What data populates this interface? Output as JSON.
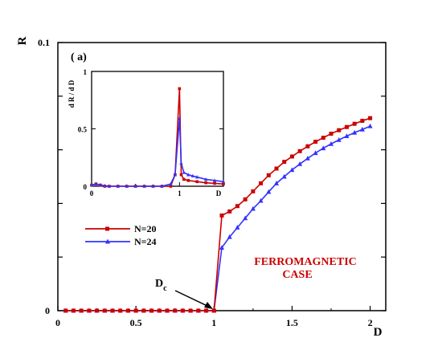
{
  "chart_data": [
    {
      "type": "line",
      "panel_label": "( a)",
      "xlabel": "D",
      "ylabel": "R",
      "xlim": [
        0,
        2.1
      ],
      "ylim": [
        0,
        0.1
      ],
      "x_ticks": [
        "0",
        "0.5",
        "1",
        "1.5",
        "2"
      ],
      "y_ticks": [
        "0",
        "0.1"
      ],
      "legend_position": "left-middle",
      "series": [
        {
          "name": "N=20",
          "color": "#cc0000",
          "marker": "square",
          "x": [
            0.05,
            0.1,
            0.15,
            0.2,
            0.25,
            0.3,
            0.35,
            0.4,
            0.45,
            0.5,
            0.55,
            0.6,
            0.65,
            0.7,
            0.75,
            0.8,
            0.85,
            0.9,
            0.95,
            1.0,
            1.05,
            1.1,
            1.15,
            1.2,
            1.25,
            1.3,
            1.35,
            1.4,
            1.45,
            1.5,
            1.55,
            1.6,
            1.65,
            1.7,
            1.75,
            1.8,
            1.85,
            1.9,
            1.95,
            2.0
          ],
          "y": [
            0,
            0,
            0,
            0,
            0,
            0,
            0,
            0,
            0,
            0,
            0,
            0,
            0,
            0,
            0,
            0,
            0,
            0,
            0,
            0,
            0.0355,
            0.037,
            0.039,
            0.0415,
            0.0445,
            0.0475,
            0.0505,
            0.053,
            0.0555,
            0.0575,
            0.0595,
            0.0613,
            0.063,
            0.0645,
            0.066,
            0.0673,
            0.0685,
            0.0697,
            0.0708,
            0.0718
          ]
        },
        {
          "name": "N=24",
          "color": "#3333ff",
          "marker": "triangle",
          "x": [
            0.05,
            0.1,
            0.15,
            0.2,
            0.25,
            0.3,
            0.35,
            0.4,
            0.45,
            0.5,
            0.55,
            0.6,
            0.65,
            0.7,
            0.75,
            0.8,
            0.85,
            0.9,
            0.95,
            1.0,
            1.05,
            1.1,
            1.15,
            1.2,
            1.25,
            1.3,
            1.35,
            1.4,
            1.45,
            1.5,
            1.55,
            1.6,
            1.65,
            1.7,
            1.75,
            1.8,
            1.85,
            1.9,
            1.95,
            2.0
          ],
          "y": [
            0,
            0,
            0,
            0,
            0,
            0,
            0,
            0,
            0,
            0,
            0,
            0,
            0,
            0,
            0,
            0,
            0,
            0,
            0,
            0,
            0.0235,
            0.0275,
            0.031,
            0.0345,
            0.038,
            0.041,
            0.0443,
            0.0475,
            0.05,
            0.0525,
            0.0547,
            0.0568,
            0.0588,
            0.0606,
            0.0622,
            0.0637,
            0.0651,
            0.0664,
            0.0676,
            0.0688
          ]
        }
      ],
      "annotations": [
        "FERROMAGNETIC",
        "CASE",
        "D",
        "c"
      ]
    },
    {
      "type": "line",
      "inset": true,
      "xlabel": "D",
      "ylabel": "d R / d D",
      "xlim": [
        0,
        1.5
      ],
      "ylim": [
        0,
        1
      ],
      "x_ticks": [
        "0",
        "1",
        "D"
      ],
      "y_ticks": [
        "0",
        "0.5",
        "1"
      ],
      "series": [
        {
          "name": "N=20",
          "color": "#cc0000",
          "x": [
            0.0,
            0.05,
            0.1,
            0.15,
            0.2,
            0.3,
            0.4,
            0.5,
            0.6,
            0.7,
            0.8,
            0.9,
            0.95,
            1.0,
            1.02,
            1.05,
            1.1,
            1.2,
            1.3,
            1.4,
            1.5
          ],
          "y": [
            0.01,
            0.02,
            0.01,
            0.0,
            0.0,
            0.0,
            0.0,
            0.0,
            0.0,
            0.0,
            0.0,
            0.0,
            0.1,
            0.85,
            0.1,
            0.06,
            0.05,
            0.04,
            0.03,
            0.025,
            0.02
          ]
        },
        {
          "name": "N=24",
          "color": "#3333ff",
          "x": [
            0.0,
            0.05,
            0.1,
            0.15,
            0.2,
            0.3,
            0.4,
            0.5,
            0.6,
            0.7,
            0.8,
            0.9,
            0.95,
            1.0,
            1.02,
            1.05,
            1.1,
            1.15,
            1.2,
            1.3,
            1.4,
            1.5
          ],
          "y": [
            0.01,
            0.02,
            0.01,
            0.005,
            0.0,
            0.0,
            0.0,
            0.0,
            0.0,
            0.0,
            0.0,
            0.02,
            0.1,
            0.59,
            0.2,
            0.12,
            0.1,
            0.09,
            0.08,
            0.06,
            0.05,
            0.04
          ]
        }
      ]
    }
  ]
}
